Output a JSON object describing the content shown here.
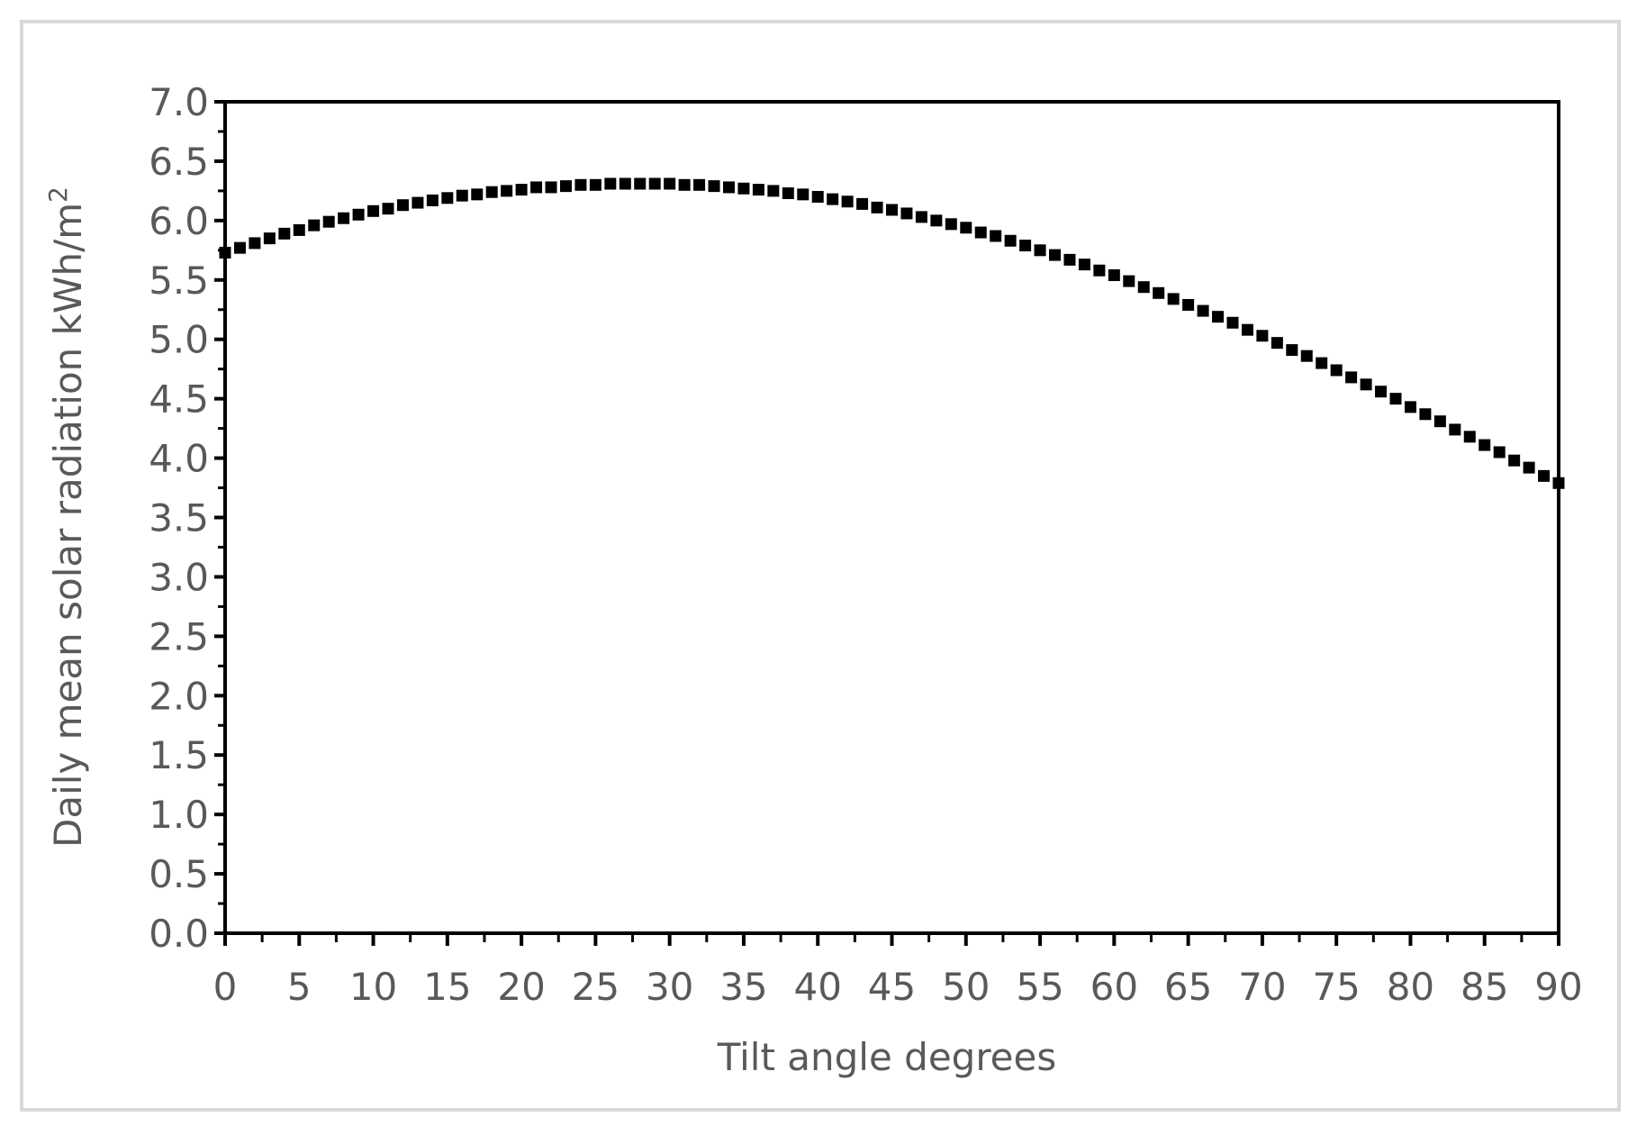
{
  "chart_data": {
    "type": "scatter",
    "title": "",
    "xlabel": "Tilt angle degrees",
    "ylabel": "Daily mean solar radiation kWh/m",
    "ylabel_superscript": "2",
    "xlim": [
      0,
      90
    ],
    "ylim": [
      0,
      7
    ],
    "x_ticks": [
      "0",
      "5",
      "10",
      "15",
      "20",
      "25",
      "30",
      "35",
      "40",
      "45",
      "50",
      "55",
      "60",
      "65",
      "70",
      "75",
      "80",
      "85",
      "90"
    ],
    "y_ticks": [
      "0.0",
      "0.5",
      "1.0",
      "1.5",
      "2.0",
      "2.5",
      "3.0",
      "3.5",
      "4.0",
      "4.5",
      "5.0",
      "5.5",
      "6.0",
      "6.5",
      "7.0"
    ],
    "grid": false,
    "legend": "none",
    "marker_color": "#000000",
    "series": [
      {
        "x": [
          0,
          1,
          2,
          3,
          4,
          5,
          6,
          7,
          8,
          9,
          10,
          11,
          12,
          13,
          14,
          15,
          16,
          17,
          18,
          19,
          20,
          21,
          22,
          23,
          24,
          25,
          26,
          27,
          28,
          29,
          30,
          31,
          32,
          33,
          34,
          35,
          36,
          37,
          38,
          39,
          40,
          41,
          42,
          43,
          44,
          45,
          46,
          47,
          48,
          49,
          50,
          51,
          52,
          53,
          54,
          55,
          56,
          57,
          58,
          59,
          60,
          61,
          62,
          63,
          64,
          65,
          66,
          67,
          68,
          69,
          70,
          71,
          72,
          73,
          74,
          75,
          76,
          77,
          78,
          79,
          80,
          81,
          82,
          83,
          84,
          85,
          86,
          87,
          88,
          89,
          90
        ],
        "y": [
          5.73,
          5.77,
          5.81,
          5.85,
          5.89,
          5.92,
          5.96,
          5.99,
          6.02,
          6.05,
          6.08,
          6.1,
          6.13,
          6.15,
          6.17,
          6.19,
          6.21,
          6.22,
          6.24,
          6.25,
          6.26,
          6.28,
          6.28,
          6.29,
          6.3,
          6.3,
          6.31,
          6.31,
          6.31,
          6.31,
          6.31,
          6.3,
          6.3,
          6.29,
          6.28,
          6.27,
          6.26,
          6.25,
          6.23,
          6.22,
          6.2,
          6.18,
          6.16,
          6.14,
          6.11,
          6.09,
          6.06,
          6.03,
          6.0,
          5.97,
          5.94,
          5.9,
          5.87,
          5.83,
          5.79,
          5.75,
          5.71,
          5.67,
          5.63,
          5.58,
          5.54,
          5.49,
          5.44,
          5.39,
          5.34,
          5.29,
          5.24,
          5.19,
          5.14,
          5.08,
          5.03,
          4.97,
          4.91,
          4.86,
          4.8,
          4.74,
          4.68,
          4.62,
          4.56,
          4.5,
          4.43,
          4.37,
          4.31,
          4.24,
          4.18,
          4.11,
          4.05,
          3.98,
          3.92,
          3.85,
          3.79
        ]
      }
    ]
  }
}
